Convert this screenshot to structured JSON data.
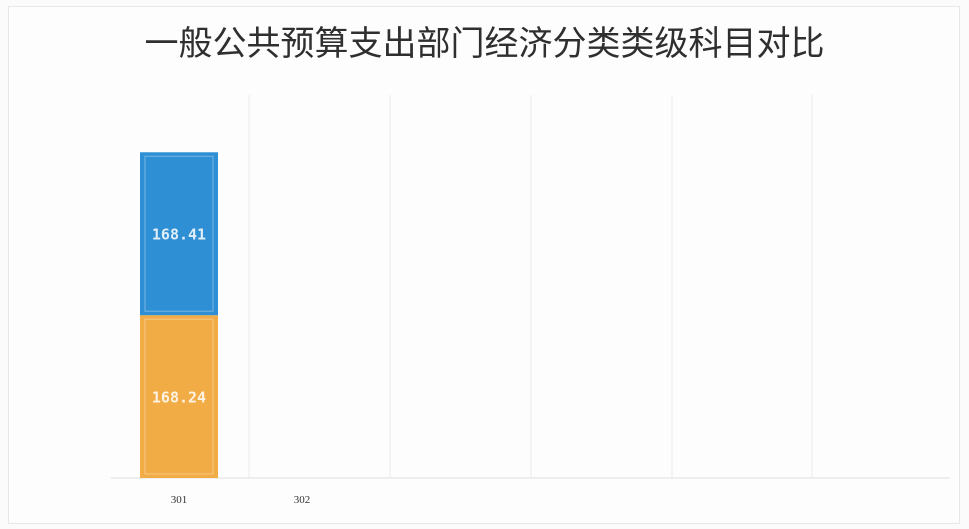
{
  "chart_data": {
    "type": "bar",
    "stacked": true,
    "title": "一般公共预算支出部门经济分类类级科目对比",
    "xlabel": "",
    "ylabel": "",
    "categories": [
      "301",
      "302"
    ],
    "series": [
      {
        "values": [
          168.24,
          0
        ],
        "color": "#f2ac45"
      },
      {
        "values": [
          168.41,
          0
        ],
        "color": "#2f8fd4"
      }
    ],
    "data_labels": [
      "168.24",
      "168.41"
    ],
    "ylim": [
      0,
      370
    ],
    "grid": "vertical",
    "legend": "none"
  }
}
